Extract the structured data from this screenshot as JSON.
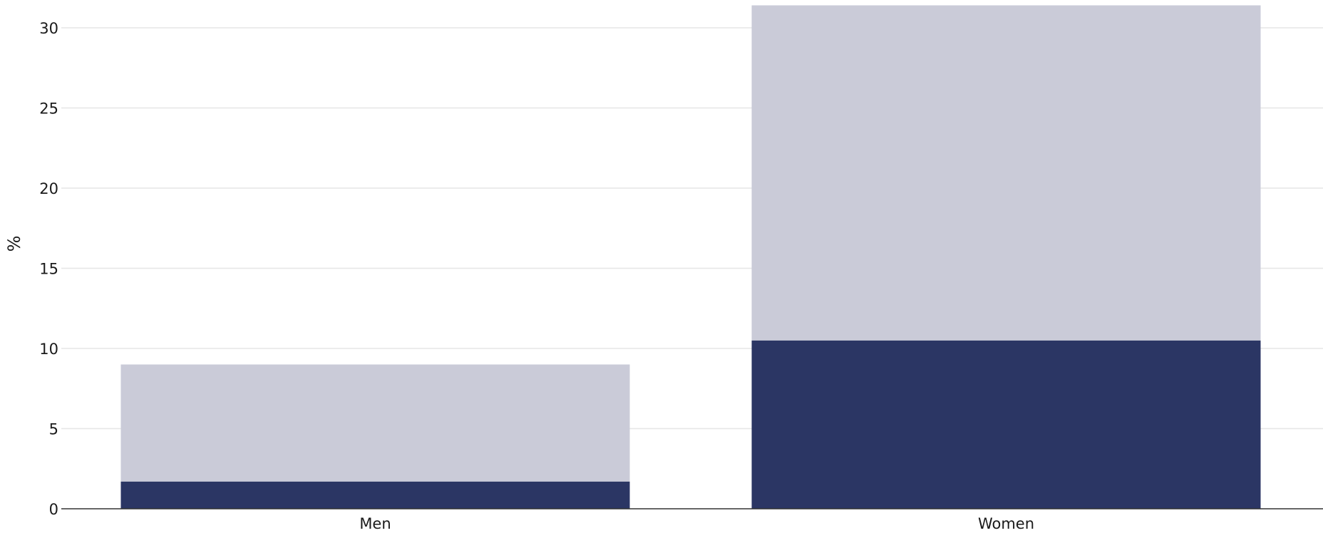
{
  "chart_data": {
    "type": "bar",
    "stacked": true,
    "categories": [
      "Men",
      "Women"
    ],
    "series": [
      {
        "values": [
          1.7,
          10.5
        ],
        "color": "#2b3664"
      },
      {
        "values": [
          7.3,
          20.9
        ],
        "color": "#cacbd8"
      }
    ],
    "xlabel": "",
    "ylabel": "%",
    "ylim": [
      0,
      32
    ],
    "yticks": [
      0,
      5,
      10,
      15,
      20,
      25,
      30
    ],
    "grid": true,
    "legend": "none",
    "gridline_color": "#e6e6e6",
    "axis_color": "#333333"
  }
}
